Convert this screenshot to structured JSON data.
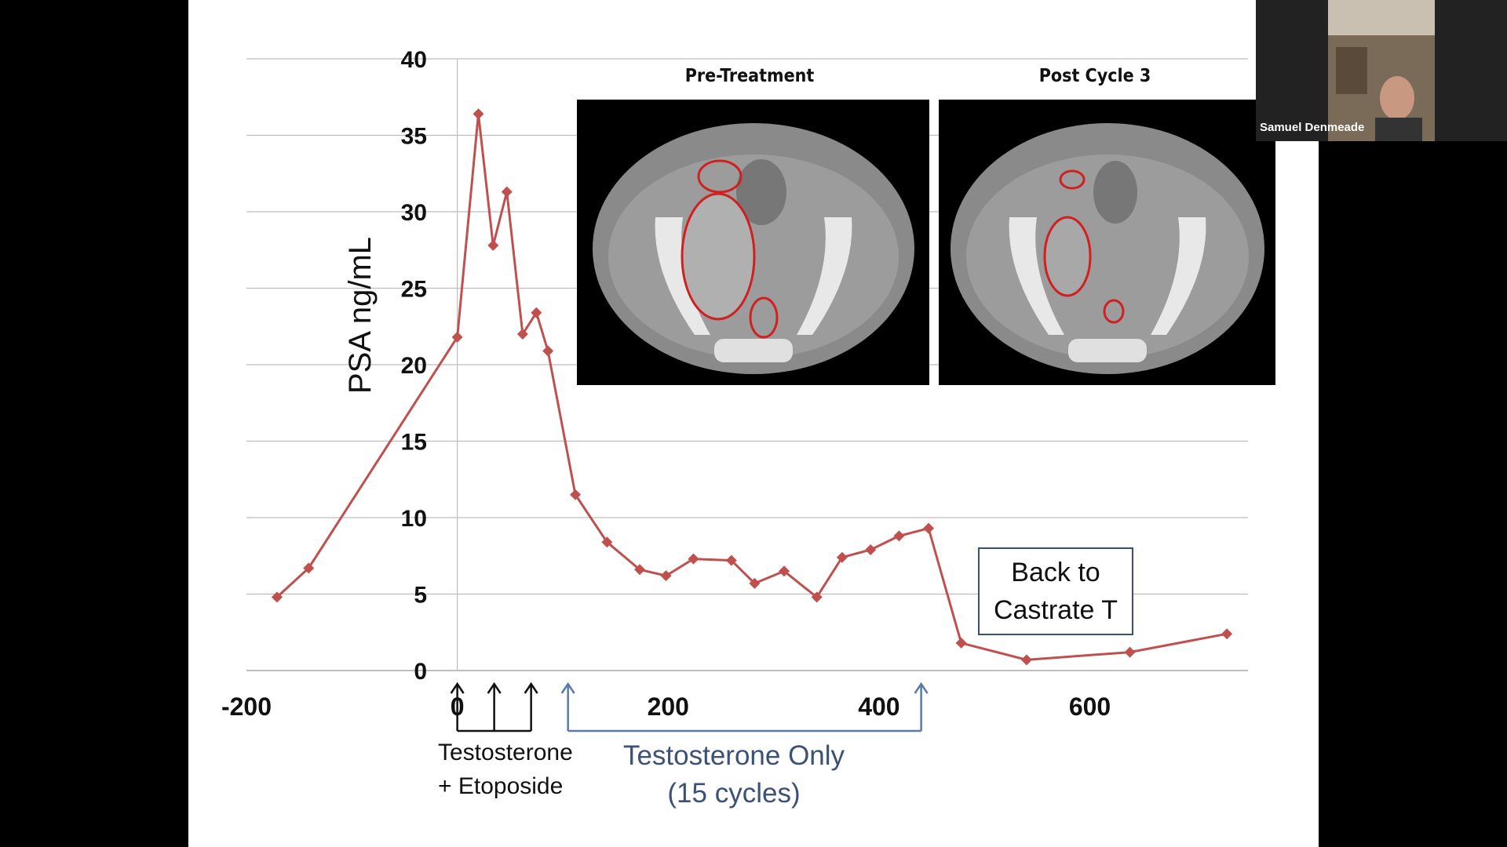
{
  "meeting": {
    "participant_name": "Samuel Denmeade"
  },
  "slide": {
    "image_titles": [
      "Pre-Treatment",
      "Post Cycle 3"
    ],
    "callout_lines": [
      "Back to",
      "Castrate T"
    ],
    "treatment_label_1": [
      "Testosterone",
      "+ Etoposide"
    ],
    "treatment_label_2": [
      "Testosterone Only",
      "(15 cycles)"
    ]
  },
  "chart_data": {
    "type": "line",
    "ylabel": "PSA ng/mL",
    "xlabel": "",
    "x_ticks": [
      "-200",
      "0",
      "200",
      "400",
      "600"
    ],
    "y_ticks": [
      "0",
      "5",
      "10",
      "15",
      "20",
      "25",
      "30",
      "35",
      "40"
    ],
    "xlim": [
      -200,
      750
    ],
    "ylim": [
      0,
      40
    ],
    "grid": true,
    "color": "#c0504d",
    "series": [
      {
        "points": [
          [
            -171,
            4.8
          ],
          [
            -141,
            6.7
          ],
          [
            0,
            21.8
          ],
          [
            20,
            36.4
          ],
          [
            34,
            27.8
          ],
          [
            47,
            31.3
          ],
          [
            62,
            22.0
          ],
          [
            75,
            23.4
          ],
          [
            86,
            20.9
          ],
          [
            112,
            11.5
          ],
          [
            142,
            8.4
          ],
          [
            173,
            6.6
          ],
          [
            198,
            6.2
          ],
          [
            224,
            7.3
          ],
          [
            260,
            7.2
          ],
          [
            282,
            5.7
          ],
          [
            310,
            6.5
          ],
          [
            341,
            4.8
          ],
          [
            365,
            7.4
          ],
          [
            392,
            7.9
          ],
          [
            419,
            8.8
          ],
          [
            447,
            9.3
          ],
          [
            478,
            1.8
          ],
          [
            540,
            0.7
          ],
          [
            638,
            1.2
          ],
          [
            730,
            2.4
          ]
        ]
      }
    ],
    "annotations": {
      "black_arrows_x": [
        0,
        35,
        70
      ],
      "blue_arrows_x": [
        105,
        440
      ]
    }
  }
}
